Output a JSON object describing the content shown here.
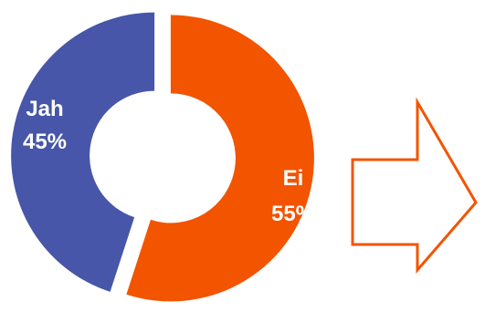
{
  "chart_data": {
    "type": "pie",
    "variant": "donut",
    "categories": [
      "Ei",
      "Jah"
    ],
    "values": [
      55,
      45
    ],
    "value_labels": [
      "55%",
      "45%"
    ],
    "colors": [
      "#F25400",
      "#4756A8"
    ],
    "start_angle_deg": 0,
    "direction": "clockwise",
    "exploded": true
  },
  "arrow": {
    "direction": "right",
    "outline_color": "#F25400"
  }
}
